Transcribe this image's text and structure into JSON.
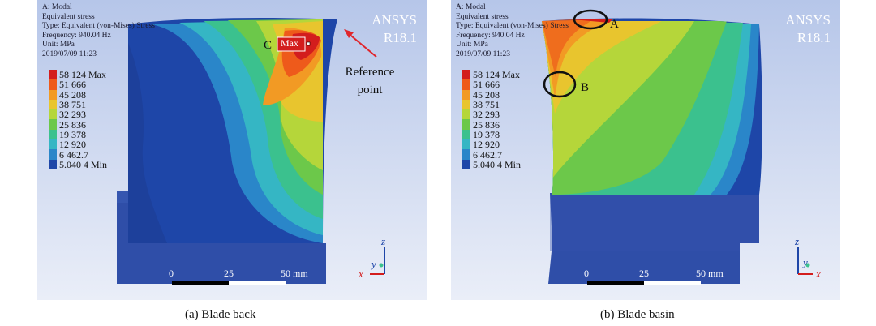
{
  "panels": [
    {
      "info": [
        "A: Modal",
        "Equivalent stress",
        "Type: Equivalent (von-Mises) Stress",
        "Frequency: 940.04 Hz",
        "Unit: MPa",
        "2019/07/09 11:23"
      ],
      "product": "ANSYS",
      "version": "R18.1",
      "caption": "(a) Blade back",
      "annotations": {
        "max_label": "Max",
        "point_label": "C",
        "reference": "Reference point"
      }
    },
    {
      "info": [
        "A: Modal",
        "Equivalent stress",
        "Type: Equivalent (von-Mises) Stress",
        "Frequency: 940.04 Hz",
        "Unit: MPa",
        "2019/07/09 11:23"
      ],
      "product": "ANSYS",
      "version": "R18.1",
      "caption": "(b) Blade basin",
      "annotations": {
        "point_a": "A",
        "point_b": "B"
      }
    }
  ],
  "legend": {
    "entries": [
      "58 124 Max",
      "51 666",
      "45 208",
      "38 751",
      "32 293",
      "25 836",
      "19 378",
      "12 920",
      "6 462.7",
      "5.040 4 Min"
    ],
    "colors": [
      "#d31d1d",
      "#ee5a1b",
      "#f29a24",
      "#e8c52e",
      "#b5d63a",
      "#6cc84a",
      "#3bc18e",
      "#35b6c4",
      "#2a86c9",
      "#1e46a8"
    ]
  },
  "scale_bar": {
    "labels": [
      "0",
      "25",
      "50 mm"
    ]
  },
  "axes": {
    "z": "z",
    "y": "y",
    "x": "x"
  },
  "colors": {
    "background_top": "#b9c9ea",
    "background_bottom": "#e9edf8",
    "blade_base": "#2f4ea8"
  }
}
